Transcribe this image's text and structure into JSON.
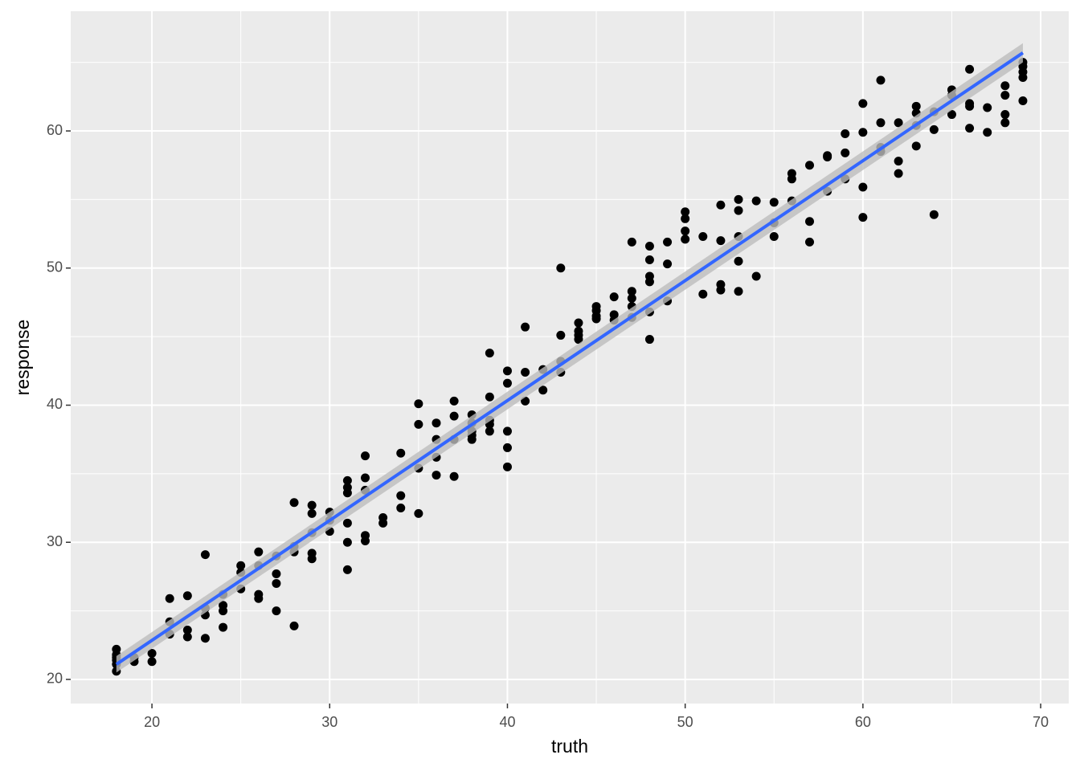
{
  "chart_data": {
    "type": "scatter",
    "x_label": "truth",
    "y_label": "response",
    "xlim": [
      15.43,
      71.58
    ],
    "ylim": [
      18.24,
      68.73
    ],
    "xticks": [
      20,
      30,
      40,
      50,
      60,
      70
    ],
    "yticks": [
      20,
      30,
      40,
      50,
      60
    ],
    "minor_xticks": [
      25,
      35,
      45,
      55,
      65
    ],
    "minor_yticks": [
      25,
      35,
      45,
      55,
      65
    ],
    "grid": true,
    "color": "#000000",
    "x": [
      18,
      18,
      18,
      18,
      18,
      18,
      19,
      19,
      20,
      20,
      21,
      21,
      21,
      22,
      22,
      22,
      23,
      23,
      23,
      23,
      24,
      24,
      24,
      24,
      25,
      25,
      25,
      26,
      26,
      26,
      26,
      27,
      27,
      27,
      27,
      28,
      28,
      28,
      28,
      29,
      29,
      29,
      29,
      29,
      30,
      30,
      30,
      31,
      31,
      31,
      31,
      31,
      31,
      32,
      32,
      32,
      32,
      32,
      33,
      33,
      34,
      34,
      34,
      35,
      35,
      35,
      35,
      36,
      36,
      36,
      36,
      37,
      37,
      37,
      37,
      38,
      38,
      38,
      38,
      38,
      39,
      39,
      39,
      39,
      39,
      40,
      40,
      40,
      40,
      40,
      41,
      41,
      41,
      42,
      42,
      43,
      43,
      43,
      43,
      44,
      44,
      44,
      44,
      45,
      45,
      45,
      45,
      46,
      46,
      46,
      47,
      47,
      47,
      47,
      47,
      48,
      48,
      48,
      48,
      48,
      48,
      49,
      49,
      49,
      50,
      50,
      50,
      50,
      51,
      51,
      52,
      52,
      52,
      52,
      53,
      53,
      53,
      53,
      53,
      54,
      54,
      55,
      55,
      55,
      56,
      56,
      56,
      57,
      57,
      57,
      58,
      58,
      58,
      59,
      59,
      59,
      60,
      60,
      60,
      60,
      61,
      61,
      61,
      61,
      62,
      62,
      62,
      63,
      63,
      63,
      63,
      64,
      64,
      64,
      65,
      65,
      65,
      66,
      66,
      66,
      66,
      67,
      67,
      68,
      68,
      68,
      68,
      69,
      69,
      69,
      69,
      69
    ],
    "values": [
      22.2,
      21.8,
      21.6,
      21.4,
      21.1,
      20.6,
      21.6,
      21.3,
      21.9,
      21.3,
      25.9,
      24.2,
      23.3,
      26.1,
      23.6,
      23.1,
      29.1,
      25.2,
      24.7,
      23.0,
      26.2,
      25.4,
      25.0,
      23.8,
      28.3,
      27.8,
      26.6,
      29.3,
      28.3,
      26.2,
      25.9,
      29.0,
      27.7,
      27.0,
      25.0,
      32.9,
      29.7,
      29.3,
      23.9,
      32.7,
      32.1,
      30.7,
      29.2,
      28.8,
      32.2,
      31.6,
      30.8,
      34.5,
      34.0,
      33.6,
      31.4,
      30.0,
      28.0,
      36.3,
      34.7,
      33.8,
      30.5,
      30.1,
      31.8,
      31.4,
      36.5,
      33.4,
      32.5,
      40.1,
      38.6,
      35.4,
      32.1,
      38.7,
      37.5,
      36.2,
      34.9,
      40.3,
      39.2,
      37.5,
      34.8,
      39.3,
      38.7,
      38.1,
      37.8,
      37.5,
      43.8,
      40.6,
      38.9,
      38.6,
      38.1,
      42.5,
      41.6,
      38.1,
      36.9,
      35.5,
      45.7,
      42.4,
      40.3,
      42.6,
      41.1,
      50.0,
      45.1,
      43.2,
      42.4,
      46.0,
      45.4,
      45.1,
      44.8,
      47.2,
      46.9,
      46.5,
      46.3,
      47.9,
      46.6,
      46.2,
      51.9,
      48.3,
      47.8,
      47.2,
      46.4,
      51.6,
      50.6,
      49.4,
      49.0,
      46.8,
      44.8,
      51.9,
      50.3,
      47.6,
      54.1,
      53.6,
      52.7,
      52.1,
      52.3,
      48.1,
      54.6,
      52.0,
      48.8,
      48.4,
      55.0,
      54.2,
      52.3,
      50.5,
      48.3,
      54.9,
      49.4,
      54.8,
      53.3,
      52.3,
      56.9,
      56.5,
      54.9,
      57.5,
      53.4,
      51.9,
      58.2,
      58.1,
      55.6,
      59.8,
      58.4,
      56.5,
      62.0,
      59.9,
      55.9,
      53.7,
      63.7,
      60.6,
      58.8,
      58.5,
      60.6,
      57.8,
      56.9,
      61.8,
      61.3,
      60.4,
      58.9,
      61.4,
      60.1,
      53.9,
      63.0,
      62.6,
      61.2,
      64.5,
      62.0,
      61.8,
      60.2,
      61.7,
      59.9,
      63.3,
      62.6,
      61.2,
      60.6,
      65.0,
      64.7,
      64.3,
      63.9,
      62.2
    ],
    "smooth": {
      "x": [
        18,
        69
      ],
      "values": [
        21.1,
        65.7
      ],
      "lower": [
        20.5,
        65.0
      ],
      "upper": [
        21.7,
        66.4
      ],
      "color": "#3366ff",
      "band_color": "#bdbdbd"
    }
  }
}
